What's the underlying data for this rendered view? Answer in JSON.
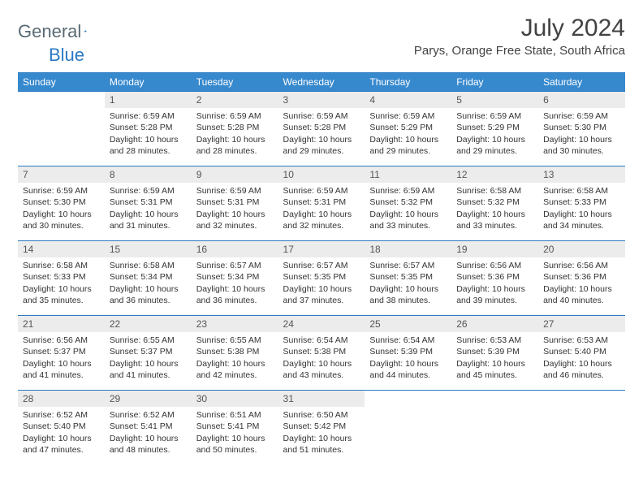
{
  "brand": {
    "name1": "General",
    "name2": "Blue"
  },
  "title": "July 2024",
  "location": "Parys, Orange Free State, South Africa",
  "colors": {
    "header_bg": "#3789ce",
    "header_border": "#2b79c2",
    "daynum_bg": "#ececec",
    "text": "#333333"
  },
  "weekdays": [
    "Sunday",
    "Monday",
    "Tuesday",
    "Wednesday",
    "Thursday",
    "Friday",
    "Saturday"
  ],
  "first_day_index": 1,
  "days": [
    {
      "n": 1,
      "sunrise": "6:59 AM",
      "sunset": "5:28 PM",
      "daylight": "10 hours and 28 minutes."
    },
    {
      "n": 2,
      "sunrise": "6:59 AM",
      "sunset": "5:28 PM",
      "daylight": "10 hours and 28 minutes."
    },
    {
      "n": 3,
      "sunrise": "6:59 AM",
      "sunset": "5:28 PM",
      "daylight": "10 hours and 29 minutes."
    },
    {
      "n": 4,
      "sunrise": "6:59 AM",
      "sunset": "5:29 PM",
      "daylight": "10 hours and 29 minutes."
    },
    {
      "n": 5,
      "sunrise": "6:59 AM",
      "sunset": "5:29 PM",
      "daylight": "10 hours and 29 minutes."
    },
    {
      "n": 6,
      "sunrise": "6:59 AM",
      "sunset": "5:30 PM",
      "daylight": "10 hours and 30 minutes."
    },
    {
      "n": 7,
      "sunrise": "6:59 AM",
      "sunset": "5:30 PM",
      "daylight": "10 hours and 30 minutes."
    },
    {
      "n": 8,
      "sunrise": "6:59 AM",
      "sunset": "5:31 PM",
      "daylight": "10 hours and 31 minutes."
    },
    {
      "n": 9,
      "sunrise": "6:59 AM",
      "sunset": "5:31 PM",
      "daylight": "10 hours and 32 minutes."
    },
    {
      "n": 10,
      "sunrise": "6:59 AM",
      "sunset": "5:31 PM",
      "daylight": "10 hours and 32 minutes."
    },
    {
      "n": 11,
      "sunrise": "6:59 AM",
      "sunset": "5:32 PM",
      "daylight": "10 hours and 33 minutes."
    },
    {
      "n": 12,
      "sunrise": "6:58 AM",
      "sunset": "5:32 PM",
      "daylight": "10 hours and 33 minutes."
    },
    {
      "n": 13,
      "sunrise": "6:58 AM",
      "sunset": "5:33 PM",
      "daylight": "10 hours and 34 minutes."
    },
    {
      "n": 14,
      "sunrise": "6:58 AM",
      "sunset": "5:33 PM",
      "daylight": "10 hours and 35 minutes."
    },
    {
      "n": 15,
      "sunrise": "6:58 AM",
      "sunset": "5:34 PM",
      "daylight": "10 hours and 36 minutes."
    },
    {
      "n": 16,
      "sunrise": "6:57 AM",
      "sunset": "5:34 PM",
      "daylight": "10 hours and 36 minutes."
    },
    {
      "n": 17,
      "sunrise": "6:57 AM",
      "sunset": "5:35 PM",
      "daylight": "10 hours and 37 minutes."
    },
    {
      "n": 18,
      "sunrise": "6:57 AM",
      "sunset": "5:35 PM",
      "daylight": "10 hours and 38 minutes."
    },
    {
      "n": 19,
      "sunrise": "6:56 AM",
      "sunset": "5:36 PM",
      "daylight": "10 hours and 39 minutes."
    },
    {
      "n": 20,
      "sunrise": "6:56 AM",
      "sunset": "5:36 PM",
      "daylight": "10 hours and 40 minutes."
    },
    {
      "n": 21,
      "sunrise": "6:56 AM",
      "sunset": "5:37 PM",
      "daylight": "10 hours and 41 minutes."
    },
    {
      "n": 22,
      "sunrise": "6:55 AM",
      "sunset": "5:37 PM",
      "daylight": "10 hours and 41 minutes."
    },
    {
      "n": 23,
      "sunrise": "6:55 AM",
      "sunset": "5:38 PM",
      "daylight": "10 hours and 42 minutes."
    },
    {
      "n": 24,
      "sunrise": "6:54 AM",
      "sunset": "5:38 PM",
      "daylight": "10 hours and 43 minutes."
    },
    {
      "n": 25,
      "sunrise": "6:54 AM",
      "sunset": "5:39 PM",
      "daylight": "10 hours and 44 minutes."
    },
    {
      "n": 26,
      "sunrise": "6:53 AM",
      "sunset": "5:39 PM",
      "daylight": "10 hours and 45 minutes."
    },
    {
      "n": 27,
      "sunrise": "6:53 AM",
      "sunset": "5:40 PM",
      "daylight": "10 hours and 46 minutes."
    },
    {
      "n": 28,
      "sunrise": "6:52 AM",
      "sunset": "5:40 PM",
      "daylight": "10 hours and 47 minutes."
    },
    {
      "n": 29,
      "sunrise": "6:52 AM",
      "sunset": "5:41 PM",
      "daylight": "10 hours and 48 minutes."
    },
    {
      "n": 30,
      "sunrise": "6:51 AM",
      "sunset": "5:41 PM",
      "daylight": "10 hours and 50 minutes."
    },
    {
      "n": 31,
      "sunrise": "6:50 AM",
      "sunset": "5:42 PM",
      "daylight": "10 hours and 51 minutes."
    }
  ],
  "labels": {
    "sunrise": "Sunrise:",
    "sunset": "Sunset:",
    "daylight": "Daylight:"
  }
}
